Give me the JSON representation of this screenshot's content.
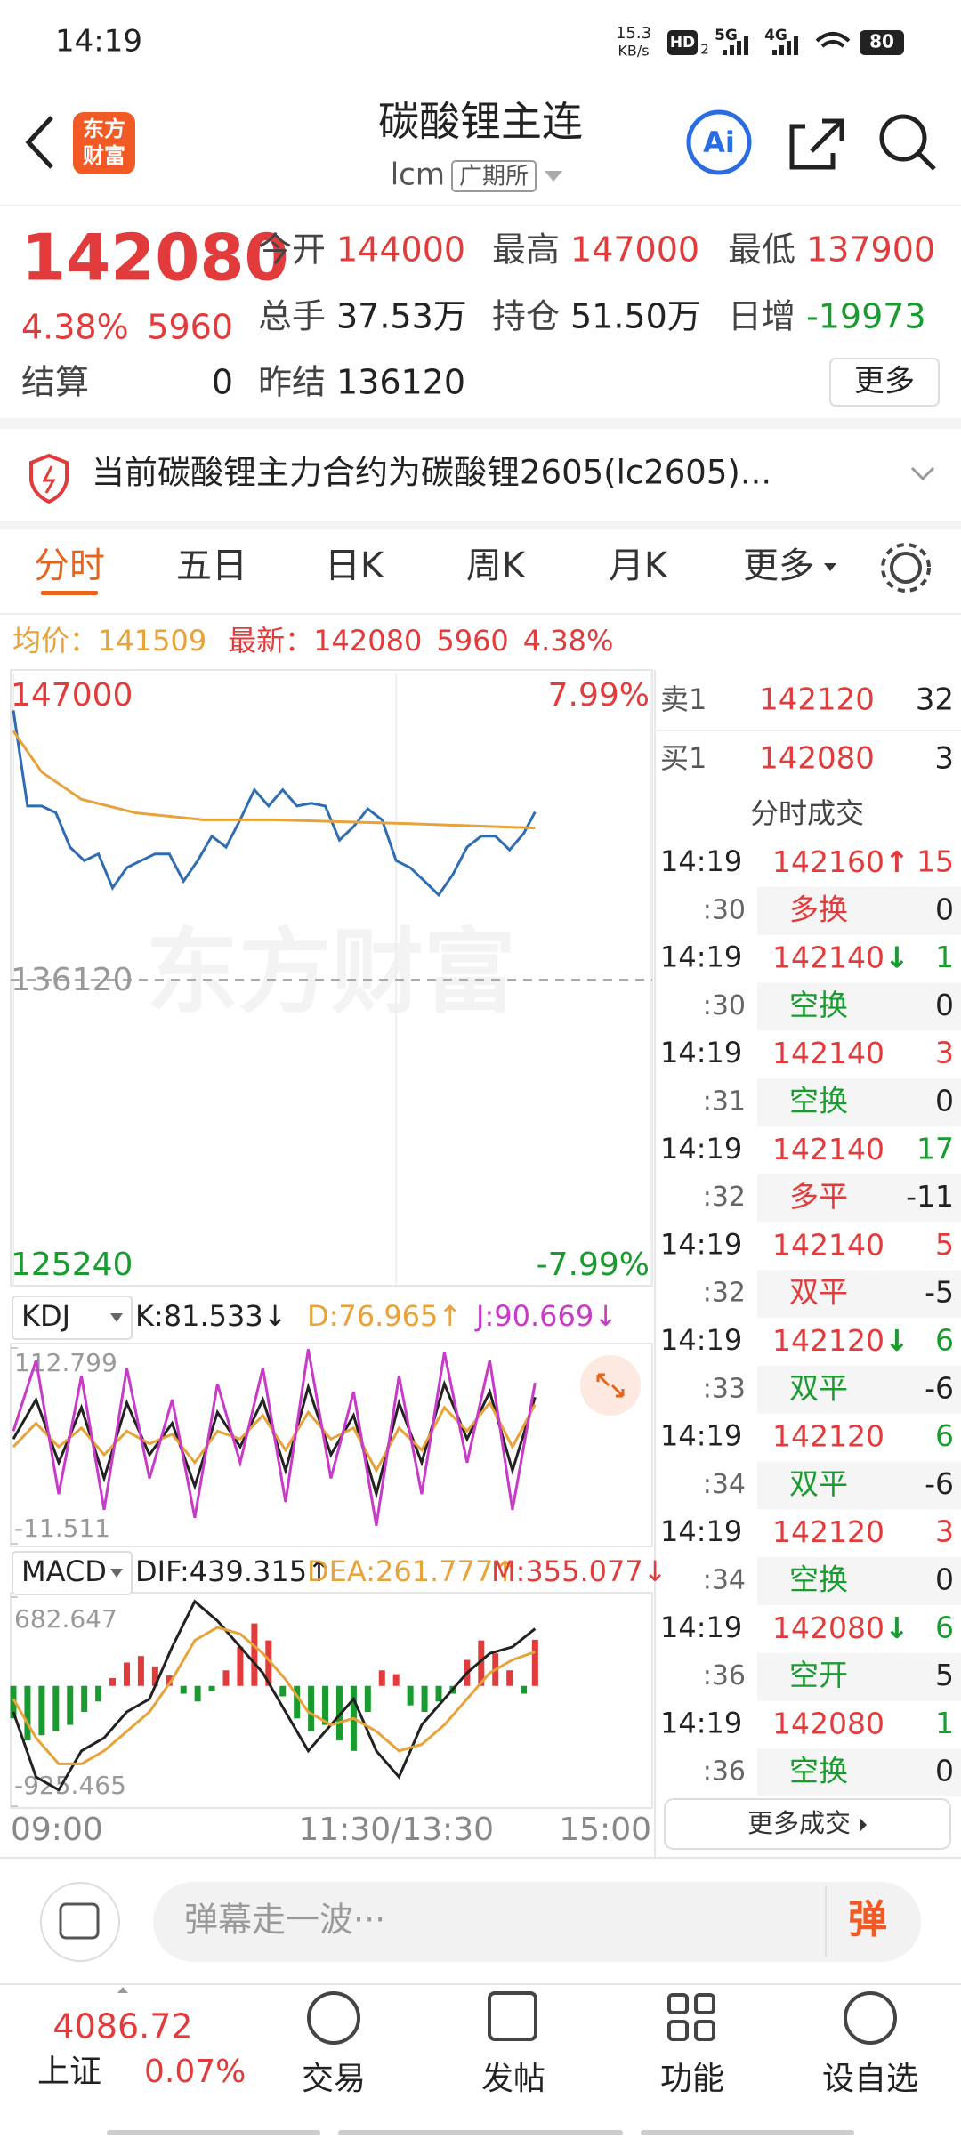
{
  "status_bar": {
    "time": "14:19",
    "speed": "15.3",
    "speed_unit": "KB/s",
    "hd": "HD",
    "sim": "2",
    "net1": "5G",
    "net2": "4G",
    "battery": "80"
  },
  "header": {
    "logo_line1": "东方",
    "logo_line2": "财富",
    "title": "碳酸锂主连",
    "code": "lcm",
    "exchange": "广期所",
    "ai": "Ai"
  },
  "quote": {
    "price": "142080",
    "change_pct": "4.38%",
    "change": "5960",
    "settle_label": "结算",
    "settle": "0",
    "more": "更多",
    "stats": [
      {
        "label": "今开",
        "value": "144000",
        "color": "#e23b3b"
      },
      {
        "label": "最高",
        "value": "147000",
        "color": "#e23b3b"
      },
      {
        "label": "最低",
        "value": "137900",
        "color": "#e23b3b"
      },
      {
        "label": "总手",
        "value": "37.53万",
        "color": "#222222"
      },
      {
        "label": "持仓",
        "value": "51.50万",
        "color": "#222222"
      },
      {
        "label": "日增",
        "value": "-19973",
        "color": "#1a9b2f"
      },
      {
        "label": "昨结",
        "value": "136120",
        "color": "#222222"
      }
    ]
  },
  "notice": {
    "text": "当前碳酸锂主力合约为碳酸锂2605(lc2605)..."
  },
  "tabs": [
    "分时",
    "五日",
    "日K",
    "周K",
    "月K",
    "更多"
  ],
  "info_bar": {
    "avg_label": "均价：",
    "avg": "141509",
    "last_label": "最新：",
    "last": "142080",
    "change": "5960",
    "change_pct": "4.38%"
  },
  "chart_data": [
    {
      "type": "line",
      "watermark": "东方财富",
      "grid": true,
      "xlim": [
        0,
        225
      ],
      "xticks": [
        {
          "value": 0,
          "label": "09:00"
        },
        {
          "value": 135,
          "label": "11:30/13:30"
        },
        {
          "value": 225,
          "label": "15:00"
        }
      ],
      "ylim": [
        125240,
        147000
      ],
      "yticks": [
        125240,
        136120,
        147000
      ],
      "ytick_colors": [
        "#1a9b2f",
        "#999999",
        "#e23b3b"
      ],
      "y2lim": [
        -7.99,
        7.99
      ],
      "y2ticks": [
        {
          "value": -7.99,
          "label": "-7.99%"
        },
        {
          "value": 7.99,
          "label": "7.99%"
        }
      ],
      "series": [
        {
          "color": "#2f6db3",
          "x": [
            0,
            5,
            10,
            15,
            20,
            25,
            30,
            35,
            40,
            45,
            50,
            55,
            60,
            65,
            70,
            75,
            80,
            85,
            90,
            95,
            100,
            105,
            110,
            115,
            120,
            125,
            130,
            135,
            140,
            145,
            150,
            155,
            160,
            165,
            170,
            175,
            180,
            184
          ],
          "values": [
            145690,
            142290,
            142290,
            142050,
            140830,
            140350,
            140590,
            139380,
            140100,
            140350,
            140590,
            140590,
            139620,
            140350,
            141220,
            140830,
            141800,
            142870,
            142290,
            142870,
            142290,
            142390,
            142290,
            141080,
            141560,
            142190,
            141800,
            140350,
            140100,
            139620,
            139130,
            139860,
            140830,
            141220,
            141220,
            140730,
            141320,
            142080
          ]
        },
        {
          "color": "#e8a23a",
          "x": [
            0,
            10,
            24,
            43,
            67,
            92,
            140,
            184
          ],
          "values": [
            144960,
            143500,
            142530,
            142050,
            141800,
            141800,
            141660,
            141509
          ]
        }
      ]
    },
    {
      "type": "line",
      "indicator": "KDJ",
      "xlim": [
        0,
        225
      ],
      "ylim": [
        -11.511,
        112.799
      ],
      "yticks": [
        -11.511,
        112.799
      ],
      "series": [
        {
          "name": "K:81.533↓",
          "color": "#222222",
          "x": [
            0,
            8,
            16,
            24,
            32,
            40,
            48,
            56,
            64,
            72,
            80,
            88,
            96,
            104,
            112,
            120,
            128,
            136,
            144,
            152,
            160,
            168,
            176,
            184
          ],
          "values": [
            55,
            80,
            40,
            75,
            30,
            78,
            45,
            65,
            25,
            72,
            50,
            80,
            35,
            88,
            45,
            70,
            20,
            78,
            40,
            90,
            55,
            85,
            35,
            81.533
          ]
        },
        {
          "name": "D:76.965↑",
          "color": "#e8a23a",
          "x": [
            0,
            8,
            16,
            24,
            32,
            40,
            48,
            56,
            64,
            72,
            80,
            88,
            96,
            104,
            112,
            120,
            128,
            136,
            144,
            152,
            160,
            168,
            176,
            184
          ],
          "values": [
            50,
            65,
            50,
            62,
            45,
            60,
            52,
            58,
            40,
            60,
            55,
            70,
            48,
            72,
            55,
            62,
            35,
            62,
            48,
            75,
            60,
            78,
            50,
            76.965
          ]
        },
        {
          "name": "J:90.669↓",
          "color": "#c83ac8",
          "x": [
            0,
            8,
            16,
            24,
            32,
            40,
            48,
            56,
            64,
            72,
            80,
            88,
            96,
            104,
            112,
            120,
            128,
            136,
            144,
            152,
            160,
            168,
            176,
            184
          ],
          "values": [
            60,
            105,
            20,
            95,
            10,
            100,
            30,
            80,
            5,
            90,
            40,
            100,
            15,
            112,
            30,
            85,
            0,
            95,
            20,
            110,
            40,
            105,
            10,
            90.669
          ]
        }
      ]
    },
    {
      "type": "macd",
      "indicator": "MACD",
      "xlim": [
        0,
        225
      ],
      "ylim": [
        -925.465,
        682.647
      ],
      "yticks": [
        -925.465,
        682.647
      ],
      "series": [
        {
          "name": "DIF:439.315↑",
          "color": "#222222",
          "x": [
            0,
            8,
            16,
            24,
            32,
            40,
            48,
            56,
            64,
            72,
            80,
            88,
            96,
            104,
            112,
            120,
            128,
            136,
            144,
            152,
            160,
            168,
            176,
            184
          ],
          "values": [
            -200,
            -700,
            -800,
            -500,
            -400,
            -200,
            -100,
            300,
            650,
            500,
            300,
            100,
            -200,
            -500,
            -300,
            -100,
            -500,
            -700,
            -300,
            -100,
            100,
            250,
            300,
            439.315
          ]
        },
        {
          "name": "DEA:261.777↑",
          "color": "#e8a23a",
          "x": [
            0,
            8,
            16,
            24,
            32,
            40,
            48,
            56,
            64,
            72,
            80,
            88,
            96,
            104,
            112,
            120,
            128,
            136,
            144,
            152,
            160,
            168,
            176,
            184
          ],
          "values": [
            -100,
            -400,
            -600,
            -600,
            -500,
            -350,
            -200,
            50,
            350,
            450,
            400,
            250,
            50,
            -200,
            -300,
            -250,
            -350,
            -500,
            -450,
            -300,
            -100,
            100,
            200,
            261.777
          ]
        },
        {
          "name": "M:355.077↓",
          "color": "#e23b3b",
          "negative_color": "#1a9b2f",
          "x": [
            0,
            5,
            10,
            15,
            20,
            25,
            30,
            35,
            40,
            45,
            50,
            55,
            60,
            65,
            70,
            75,
            80,
            85,
            90,
            95,
            100,
            105,
            110,
            115,
            120,
            125,
            130,
            135,
            140,
            145,
            150,
            155,
            160,
            165,
            170,
            175,
            180,
            184
          ],
          "values": [
            -250,
            -420,
            -380,
            -350,
            -300,
            -200,
            -120,
            60,
            180,
            230,
            150,
            80,
            -60,
            -120,
            -40,
            120,
            300,
            480,
            350,
            -80,
            -250,
            -350,
            -300,
            -420,
            -500,
            -200,
            120,
            90,
            -150,
            -200,
            -120,
            -60,
            200,
            350,
            250,
            120,
            -60,
            355.077
          ]
        }
      ]
    }
  ],
  "order_book": [
    {
      "label": "卖1",
      "price": "142120",
      "volume": "32"
    },
    {
      "label": "买1",
      "price": "142080",
      "volume": "3"
    }
  ],
  "trades_title": "分时成交",
  "trades": [
    {
      "time": "14:19",
      "price": "142160",
      "arrow": "↑",
      "volume": "15",
      "volume_color": "#e23b3b",
      "sec": ":30",
      "kind": "多换",
      "kind_color": "#e23b3b",
      "delta": "0"
    },
    {
      "time": "14:19",
      "price": "142140",
      "arrow": "↓",
      "volume": "1",
      "volume_color": "#1a9b2f",
      "sec": ":30",
      "kind": "空换",
      "kind_color": "#1a9b2f",
      "delta": "0"
    },
    {
      "time": "14:19",
      "price": "142140",
      "volume": "3",
      "volume_color": "#e23b3b",
      "sec": ":31",
      "kind": "空换",
      "kind_color": "#1a9b2f",
      "delta": "0"
    },
    {
      "time": "14:19",
      "price": "142140",
      "volume": "17",
      "volume_color": "#1a9b2f",
      "sec": ":32",
      "kind": "多平",
      "kind_color": "#e23b3b",
      "delta": "-11"
    },
    {
      "time": "14:19",
      "price": "142140",
      "volume": "5",
      "volume_color": "#e23b3b",
      "sec": ":32",
      "kind": "双平",
      "kind_color": "#e23b3b",
      "delta": "-5"
    },
    {
      "time": "14:19",
      "price": "142120",
      "arrow": "↓",
      "volume": "6",
      "volume_color": "#1a9b2f",
      "sec": ":33",
      "kind": "双平",
      "kind_color": "#1a9b2f",
      "delta": "-6"
    },
    {
      "time": "14:19",
      "price": "142120",
      "volume": "6",
      "volume_color": "#1a9b2f",
      "sec": ":34",
      "kind": "双平",
      "kind_color": "#1a9b2f",
      "delta": "-6"
    },
    {
      "time": "14:19",
      "price": "142120",
      "volume": "3",
      "volume_color": "#e23b3b",
      "sec": ":34",
      "kind": "空换",
      "kind_color": "#1a9b2f",
      "delta": "0"
    },
    {
      "time": "14:19",
      "price": "142080",
      "arrow": "↓",
      "volume": "6",
      "volume_color": "#1a9b2f",
      "sec": ":36",
      "kind": "空开",
      "kind_color": "#1a9b2f",
      "delta": "5"
    },
    {
      "time": "14:19",
      "price": "142080",
      "volume": "1",
      "volume_color": "#1a9b2f",
      "sec": ":36",
      "kind": "空换",
      "kind_color": "#1a9b2f",
      "delta": "0"
    }
  ],
  "more_trades": "更多成交",
  "bottom": {
    "placeholder": "弹幕走一波···",
    "danmu": "弹",
    "index_value": "4086.72",
    "index_name": "上证",
    "index_change": "0.07%",
    "nav": [
      "交易",
      "发帖",
      "功能",
      "设自选"
    ]
  }
}
